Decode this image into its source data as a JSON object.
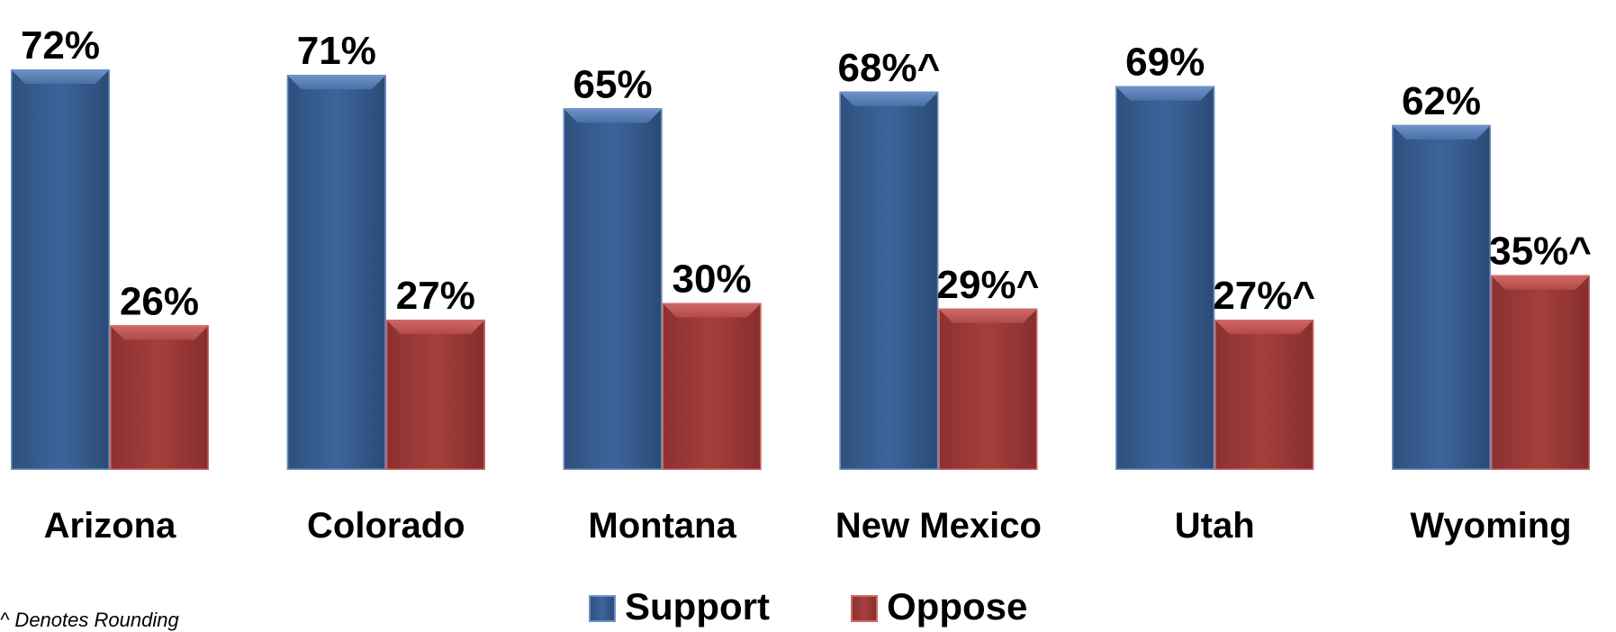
{
  "chart_data": {
    "type": "bar",
    "categories": [
      "Arizona",
      "Colorado",
      "Montana",
      "New Mexico",
      "Utah",
      "Wyoming"
    ],
    "series": [
      {
        "name": "Support",
        "color": "#3b6296",
        "values": [
          72,
          71,
          65,
          68,
          69,
          62
        ],
        "labels": [
          "72%",
          "71%",
          "65%",
          "68%^",
          "69%",
          "62%"
        ]
      },
      {
        "name": "Oppose",
        "color": "#a13c3a",
        "values": [
          26,
          27,
          30,
          29,
          27,
          35
        ],
        "labels": [
          "26%",
          "27%",
          "30%",
          "29%^",
          "27%^",
          "35%^"
        ]
      }
    ],
    "ylim": [
      0,
      85
    ],
    "grid": false,
    "legend_position": "bottom-center"
  },
  "footnote": "^ Denotes Rounding"
}
